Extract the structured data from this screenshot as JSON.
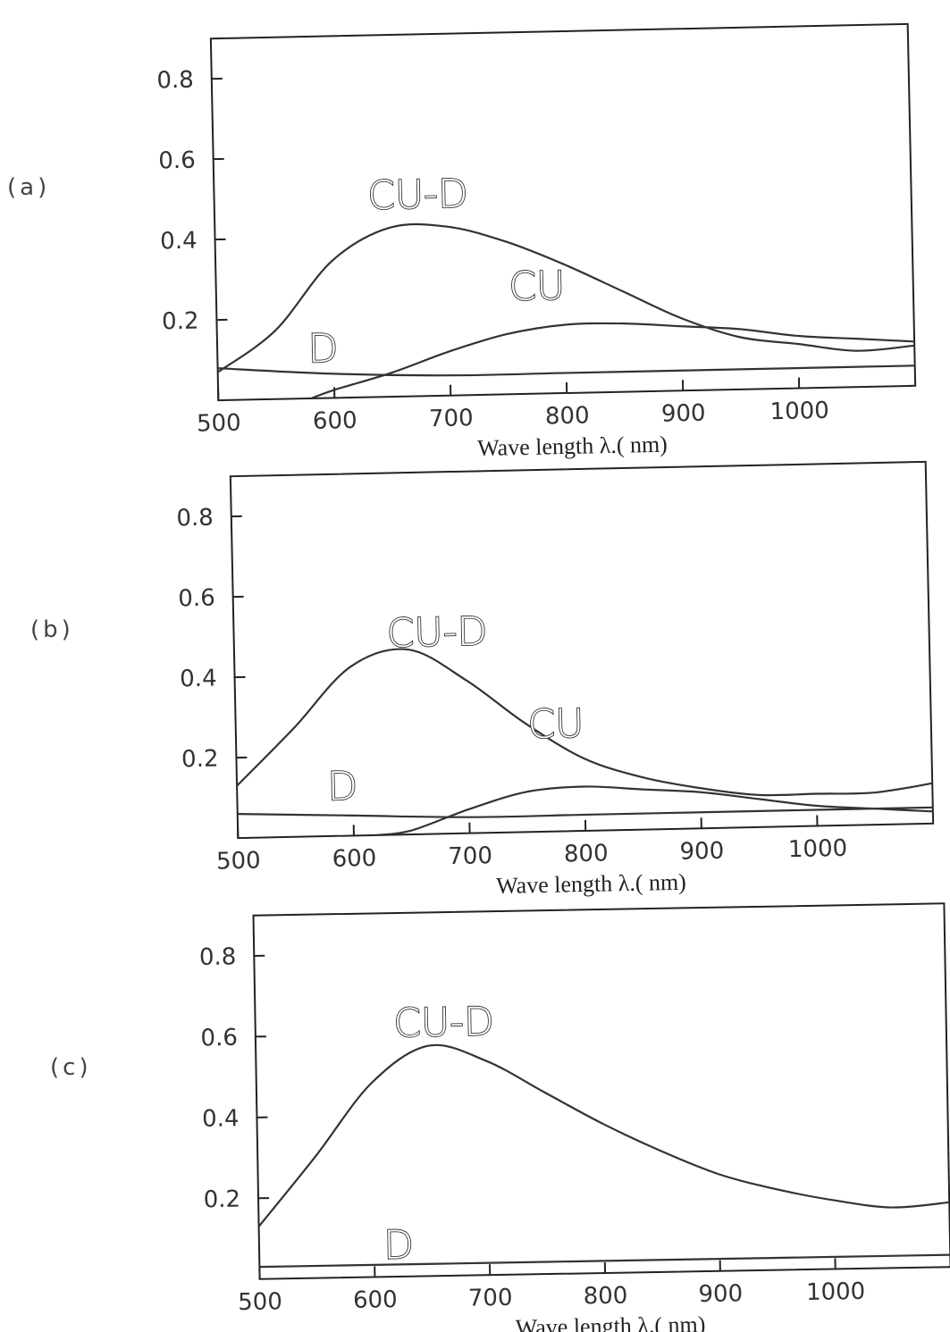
{
  "chart_data": [
    {
      "type": "line",
      "panel_label": "(a)",
      "xlabel": "Wave length λ.( nm)",
      "ylabel": "",
      "xlim": [
        500,
        1100
      ],
      "ylim": [
        0,
        0.9
      ],
      "xticks": [
        "500",
        "600",
        "700",
        "800",
        "900",
        "1000"
      ],
      "yticks": [
        "0.2",
        "0.4",
        "0.6",
        "0.8"
      ],
      "series": [
        {
          "name": "CU-D",
          "x": [
            500,
            550,
            600,
            650,
            700,
            750,
            800,
            850,
            900,
            950,
            1000,
            1050,
            1100
          ],
          "y": [
            0.07,
            0.17,
            0.34,
            0.42,
            0.42,
            0.38,
            0.32,
            0.25,
            0.18,
            0.13,
            0.11,
            0.09,
            0.1
          ]
        },
        {
          "name": "CU",
          "x": [
            580,
            600,
            650,
            700,
            750,
            800,
            850,
            900,
            950,
            1000,
            1050,
            1100
          ],
          "y": [
            0.0,
            0.02,
            0.06,
            0.11,
            0.15,
            0.17,
            0.17,
            0.16,
            0.15,
            0.13,
            0.12,
            0.11
          ]
        },
        {
          "name": "D",
          "x": [
            500,
            600,
            700,
            800,
            900,
            1000,
            1100
          ],
          "y": [
            0.08,
            0.06,
            0.05,
            0.05,
            0.05,
            0.05,
            0.05
          ]
        }
      ]
    },
    {
      "type": "line",
      "panel_label": "(b)",
      "xlabel": "Wave length λ.( nm)",
      "ylabel": "",
      "xlim": [
        500,
        1100
      ],
      "ylim": [
        0,
        0.9
      ],
      "xticks": [
        "500",
        "600",
        "700",
        "800",
        "900",
        "1000"
      ],
      "yticks": [
        "0.2",
        "0.4",
        "0.6",
        "0.8"
      ],
      "series": [
        {
          "name": "CU-D",
          "x": [
            500,
            550,
            600,
            650,
            700,
            750,
            800,
            850,
            900,
            950,
            1000,
            1050,
            1100
          ],
          "y": [
            0.13,
            0.27,
            0.42,
            0.46,
            0.38,
            0.27,
            0.18,
            0.13,
            0.1,
            0.08,
            0.08,
            0.08,
            0.1
          ]
        },
        {
          "name": "CU",
          "x": [
            620,
            650,
            700,
            750,
            800,
            850,
            900,
            950,
            1000,
            1050,
            1100
          ],
          "y": [
            0.0,
            0.01,
            0.06,
            0.1,
            0.11,
            0.1,
            0.09,
            0.07,
            0.05,
            0.04,
            0.03
          ]
        },
        {
          "name": "D",
          "x": [
            500,
            600,
            700,
            800,
            900,
            1000,
            1100
          ],
          "y": [
            0.06,
            0.05,
            0.04,
            0.04,
            0.04,
            0.04,
            0.04
          ]
        }
      ]
    },
    {
      "type": "line",
      "panel_label": "(c)",
      "xlabel": "Wave length λ.( nm)",
      "ylabel": "",
      "xlim": [
        500,
        1100
      ],
      "ylim": [
        0,
        0.9
      ],
      "xticks": [
        "500",
        "600",
        "700",
        "800",
        "900",
        "1000"
      ],
      "yticks": [
        "0.2",
        "0.4",
        "0.6",
        "0.8"
      ],
      "series": [
        {
          "name": "CU-D",
          "x": [
            500,
            550,
            600,
            650,
            700,
            750,
            800,
            850,
            900,
            950,
            1000,
            1050,
            1100
          ],
          "y": [
            0.13,
            0.3,
            0.48,
            0.57,
            0.53,
            0.45,
            0.37,
            0.3,
            0.24,
            0.2,
            0.17,
            0.15,
            0.16
          ]
        },
        {
          "name": "D",
          "x": [
            500,
            600,
            700,
            800,
            900,
            1000,
            1100
          ],
          "y": [
            0.03,
            0.03,
            0.03,
            0.03,
            0.03,
            0.03,
            0.03
          ]
        }
      ]
    }
  ]
}
